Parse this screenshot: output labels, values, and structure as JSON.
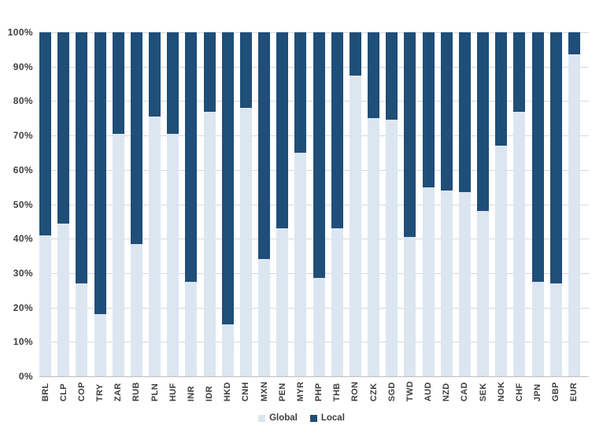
{
  "chart_data": {
    "type": "bar",
    "variant": "stacked-100-percent-column",
    "title": "",
    "xlabel": "",
    "ylabel": "",
    "ylim": [
      0,
      100
    ],
    "grid": true,
    "y_ticks": [
      "100%",
      "90%",
      "80%",
      "70%",
      "60%",
      "50%",
      "40%",
      "30%",
      "20%",
      "10%",
      "0%"
    ],
    "categories": [
      "BRL",
      "CLP",
      "COP",
      "TRY",
      "ZAR",
      "RUB",
      "PLN",
      "HUF",
      "INR",
      "IDR",
      "HKD",
      "CNH",
      "MXN",
      "PEN",
      "MYR",
      "PHP",
      "THB",
      "RON",
      "CZK",
      "SGD",
      "TWD",
      "AUD",
      "NZD",
      "CAD",
      "SEK",
      "NOK",
      "CHF",
      "JPN",
      "GBP",
      "EUR"
    ],
    "series": [
      {
        "name": "Global",
        "color": "#DCE6F1",
        "values": [
          41,
          44.5,
          27,
          18,
          70.5,
          38.5,
          75.5,
          70.5,
          27.5,
          77,
          15,
          78,
          34,
          43,
          65,
          28.5,
          43,
          87.5,
          75,
          74.5,
          40.5,
          55,
          54,
          53.5,
          48,
          67,
          77,
          27.5,
          27,
          93.5
        ]
      },
      {
        "name": "Local",
        "color": "#1F4E79",
        "values": [
          59,
          55.5,
          73,
          82,
          29.5,
          61.5,
          24.5,
          29.5,
          72.5,
          23,
          85,
          22,
          66,
          57,
          35,
          71.5,
          57,
          12.5,
          25,
          25.5,
          59.5,
          45,
          46,
          46.5,
          52,
          33,
          23,
          72.5,
          73,
          6.5
        ]
      }
    ],
    "legend": {
      "position": "bottom",
      "entries": [
        "Global",
        "Local"
      ]
    }
  },
  "colors": {
    "background": "#FFFFFF",
    "gridline": "#D9D9D9",
    "axis_line": "#BFBFBF",
    "axis_text": "#404040",
    "series_global": "#DCE6F1",
    "series_local": "#1F4E79"
  }
}
